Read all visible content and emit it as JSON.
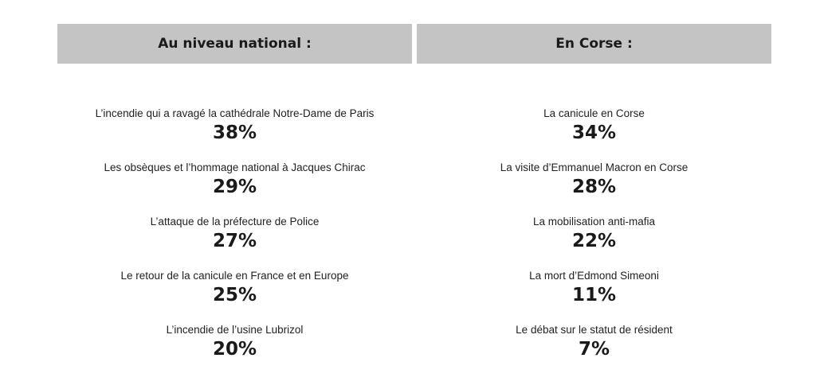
{
  "national": {
    "title": "Au niveau national :",
    "items": [
      {
        "label": "L’incendie qui a ravagé la cathédrale Notre-Dame de Paris",
        "value": "38%"
      },
      {
        "label": "Les obsèques et l’hommage national à Jacques Chirac",
        "value": "29%"
      },
      {
        "label": "L’attaque de la préfecture de Police",
        "value": "27%"
      },
      {
        "label": "Le retour de la canicule en France et en Europe",
        "value": "25%"
      },
      {
        "label": "L’incendie de l’usine Lubrizol",
        "value": "20%"
      }
    ]
  },
  "corse": {
    "title": "En Corse :",
    "items": [
      {
        "label": "La canicule en Corse",
        "value": "34%"
      },
      {
        "label": "La visite d’Emmanuel Macron en Corse",
        "value": "28%"
      },
      {
        "label": "La mobilisation anti-mafia",
        "value": "22%"
      },
      {
        "label": "La mort d’Edmond Simeoni",
        "value": "11%"
      },
      {
        "label": "Le débat sur le statut de résident",
        "value": "7%"
      }
    ]
  },
  "colors": {
    "header_background": "#c4c4c4",
    "text": "#1a1a1a"
  }
}
